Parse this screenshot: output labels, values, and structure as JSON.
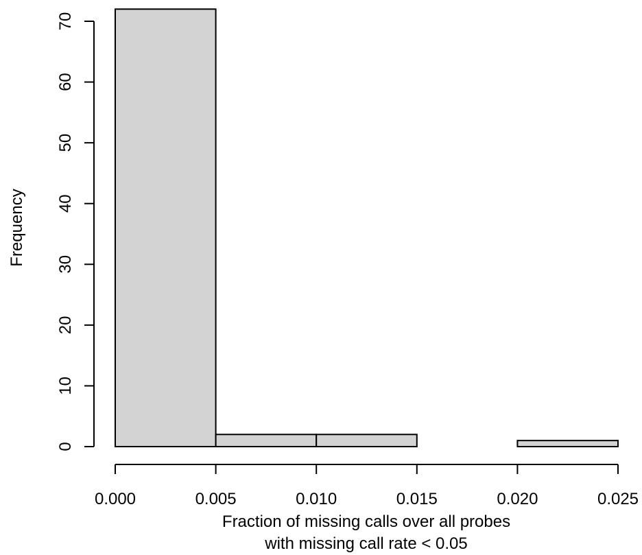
{
  "chart_data": {
    "type": "bar",
    "title": "",
    "xlabel_lines": [
      "Fraction of missing calls over all probes",
      "with missing call rate < 0.05"
    ],
    "ylabel": "Frequency",
    "bins": [
      {
        "start": 0.0,
        "end": 0.005,
        "count": 72
      },
      {
        "start": 0.005,
        "end": 0.01,
        "count": 2
      },
      {
        "start": 0.01,
        "end": 0.015,
        "count": 2
      },
      {
        "start": 0.015,
        "end": 0.02,
        "count": 0
      },
      {
        "start": 0.02,
        "end": 0.025,
        "count": 1
      }
    ],
    "xlim": [
      0,
      0.025
    ],
    "ylim": [
      0,
      72
    ],
    "x_ticks": [
      "0.000",
      "0.005",
      "0.010",
      "0.015",
      "0.020",
      "0.025"
    ],
    "y_ticks": [
      "0",
      "10",
      "20",
      "30",
      "40",
      "50",
      "60",
      "70"
    ],
    "bar_fill": "#d3d3d3",
    "bar_stroke": "#000000",
    "grid": false,
    "legend": "none"
  }
}
